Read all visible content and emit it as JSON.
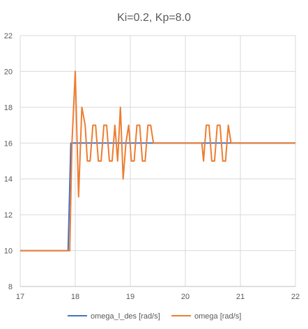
{
  "chart_data": {
    "type": "line",
    "title": "Ki=0.2, Kp=8.0",
    "xlabel": "",
    "ylabel": "",
    "xlim": [
      17,
      22
    ],
    "ylim": [
      8,
      22
    ],
    "x_ticks": [
      "17",
      "18",
      "19",
      "20",
      "21",
      "22"
    ],
    "y_ticks": [
      "8",
      "10",
      "12",
      "14",
      "16",
      "18",
      "20",
      "22"
    ],
    "grid": true,
    "legend_position": "bottom",
    "series": [
      {
        "name": "omega_l_des [rad/s]",
        "color": "#4472C4",
        "x": [
          17.0,
          17.87,
          17.92,
          22.0
        ],
        "y": [
          10,
          10,
          16,
          16
        ]
      },
      {
        "name": "omega [rad/s]",
        "color": "#ED7D31",
        "x": [
          17.0,
          17.9,
          17.94,
          18.0,
          18.06,
          18.12,
          18.18,
          18.22,
          18.27,
          18.32,
          18.37,
          18.42,
          18.47,
          18.52,
          18.57,
          18.62,
          18.67,
          18.72,
          18.77,
          18.82,
          18.87,
          18.92,
          18.97,
          19.02,
          19.07,
          19.12,
          19.17,
          19.22,
          19.27,
          19.32,
          19.37,
          19.42,
          19.47,
          20.3,
          20.33,
          20.38,
          20.43,
          20.48,
          20.53,
          20.58,
          20.63,
          20.68,
          20.73,
          20.78,
          20.83,
          20.88,
          22.0
        ],
        "y": [
          10,
          10,
          16,
          20,
          13,
          18,
          17,
          15,
          15,
          17,
          17,
          15,
          15,
          17,
          17,
          15,
          15,
          17,
          15,
          18,
          14,
          16,
          17,
          15,
          15,
          17,
          17,
          15,
          15,
          17,
          17,
          16,
          16,
          16,
          15,
          17,
          17,
          15,
          15,
          17,
          17,
          15,
          15,
          17,
          16,
          16,
          16
        ]
      }
    ]
  }
}
